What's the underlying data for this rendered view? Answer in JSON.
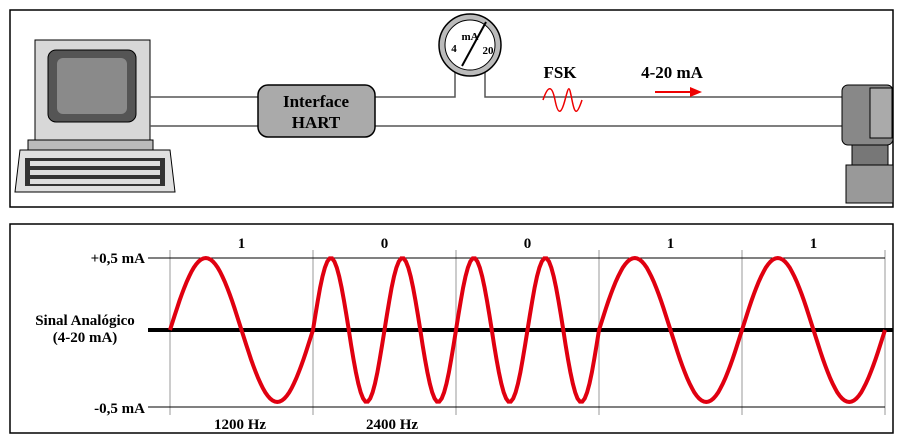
{
  "top": {
    "interface_label": [
      "Interface",
      "HART"
    ],
    "gauge": {
      "unit": "mA",
      "low": "4",
      "high": "20"
    },
    "fsk_label": "FSK",
    "current_label": "4-20 mA"
  },
  "bottom": {
    "y_labels": {
      "top": "+0,5 mA",
      "middle": [
        "Sinal Analógico",
        "(4-20 mA)"
      ],
      "bottom": "-0,5 mA"
    },
    "bits": [
      "1",
      "0",
      "0",
      "1",
      "1"
    ],
    "frequencies": [
      "1200 Hz",
      "2400 Hz"
    ]
  }
}
